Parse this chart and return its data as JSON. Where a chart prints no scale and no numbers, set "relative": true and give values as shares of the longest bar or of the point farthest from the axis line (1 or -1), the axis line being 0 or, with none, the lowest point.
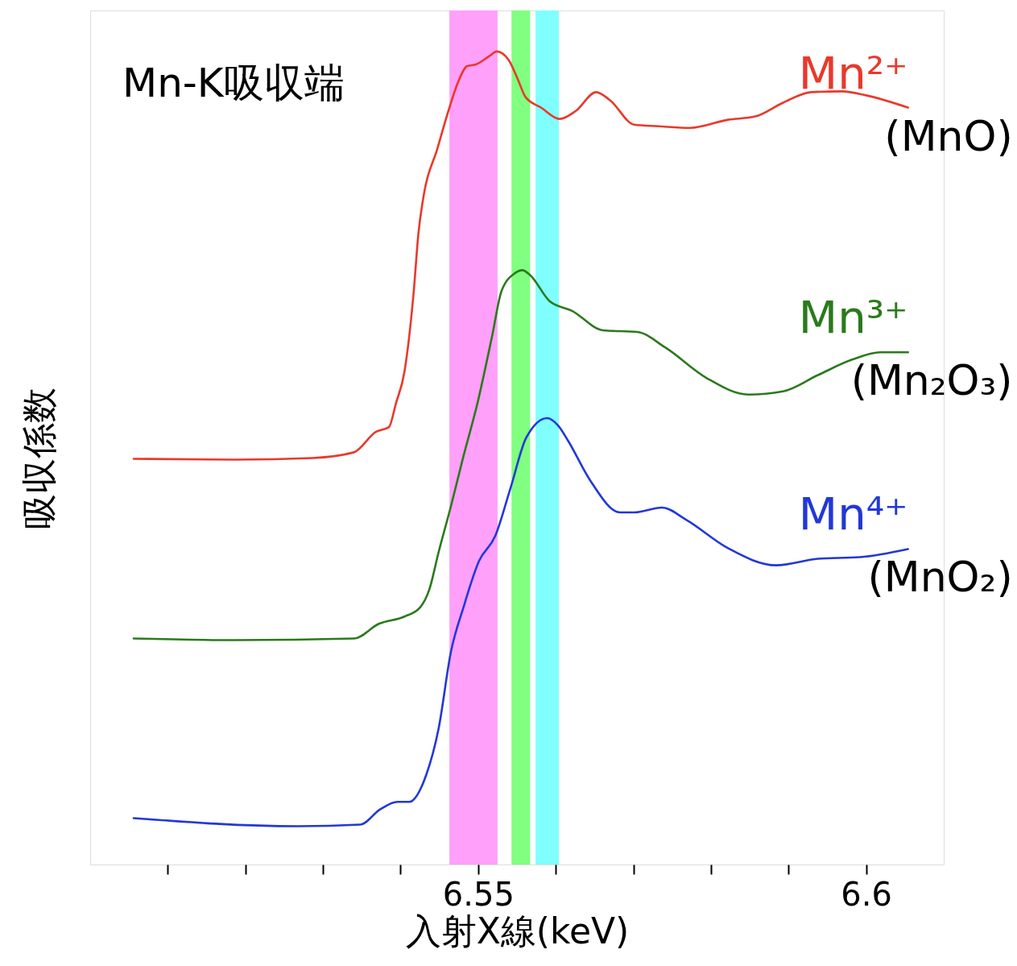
{
  "chart_data": {
    "type": "line",
    "title": "Mn-K吸収端",
    "xlabel": "入射X線(keV)",
    "ylabel": "吸収係数",
    "relative": true,
    "xlim": [
      6.5,
      6.61
    ],
    "xticks": [
      {
        "value": 6.51,
        "label": null
      },
      {
        "value": 6.52,
        "label": null
      },
      {
        "value": 6.53,
        "label": null
      },
      {
        "value": 6.54,
        "label": null
      },
      6.55,
      {
        "value": 6.56,
        "label": null
      },
      {
        "value": 6.57,
        "label": null
      },
      {
        "value": 6.58,
        "label": null
      },
      {
        "value": 6.59,
        "label": null
      },
      6.6
    ],
    "bands": [
      {
        "axis": "x",
        "from": 6.5463,
        "to": 6.5525,
        "color": "#ffa0fa"
      },
      {
        "axis": "x",
        "from": 6.5543,
        "to": 6.5567,
        "color": "#80ff80"
      },
      {
        "axis": "x",
        "from": 6.5574,
        "to": 6.5604,
        "color": "#80ffff"
      }
    ],
    "annotations": [
      "(MnO)",
      "(Mn₂O₃)",
      "(MnO₂)"
    ],
    "series": [
      {
        "name": "Mn²⁺",
        "color": "#e8392c",
        "x": [
          6.5056,
          6.5187,
          6.5287,
          6.534,
          6.5368,
          6.5385,
          6.5394,
          6.5405,
          6.5417,
          6.5423,
          6.543,
          6.5447,
          6.5463,
          6.5474,
          6.5486,
          6.5497,
          6.5514,
          6.5524,
          6.5539,
          6.5551,
          6.5561,
          6.5581,
          6.5605,
          6.5626,
          6.5652,
          6.567,
          6.5701,
          6.5733,
          6.5773,
          6.5822,
          6.5857,
          6.5893,
          6.5929,
          6.5969,
          6.6,
          6.6054
        ],
        "values": [
          0.499,
          0.498,
          0.5,
          0.507,
          0.532,
          0.538,
          0.567,
          0.606,
          0.705,
          0.776,
          0.824,
          0.879,
          0.931,
          0.962,
          0.982,
          0.984,
          0.994,
          1.0,
          0.99,
          0.966,
          0.944,
          0.931,
          0.917,
          0.927,
          0.95,
          0.94,
          0.91,
          0.908,
          0.906,
          0.916,
          0.92,
          0.937,
          0.95,
          0.951,
          0.946,
          0.931
        ]
      },
      {
        "name": "Mn³⁺",
        "color": "#2b7a1c",
        "x": [
          6.5056,
          6.5187,
          6.534,
          6.5372,
          6.5405,
          6.5425,
          6.5437,
          6.5449,
          6.5465,
          6.5481,
          6.5499,
          6.5518,
          6.553,
          6.5547,
          6.5557,
          6.5567,
          6.5592,
          6.5621,
          6.5661,
          6.5705,
          6.5741,
          6.5795,
          6.5848,
          6.5893,
          6.5938,
          6.5982,
          6.6018,
          6.6054
        ],
        "values": [
          0.278,
          0.276,
          0.278,
          0.296,
          0.305,
          0.316,
          0.338,
          0.384,
          0.441,
          0.502,
          0.567,
          0.65,
          0.705,
          0.727,
          0.731,
          0.725,
          0.693,
          0.681,
          0.657,
          0.655,
          0.636,
          0.598,
          0.578,
          0.582,
          0.602,
          0.621,
          0.63,
          0.63
        ]
      },
      {
        "name": "Mn⁴⁺",
        "color": "#2238d8",
        "x": [
          6.5056,
          6.5267,
          6.5348,
          6.5374,
          6.5396,
          6.5411,
          6.5433,
          6.5449,
          6.5465,
          6.5481,
          6.5501,
          6.5522,
          6.5542,
          6.5562,
          6.5589,
          6.5603,
          6.5616,
          6.5644,
          6.5683,
          6.5701,
          6.5737,
          6.5768,
          6.5822,
          6.5884,
          6.5938,
          6.5992,
          6.6054
        ],
        "values": [
          0.057,
          0.047,
          0.049,
          0.068,
          0.077,
          0.077,
          0.11,
          0.167,
          0.262,
          0.316,
          0.373,
          0.404,
          0.464,
          0.525,
          0.549,
          0.54,
          0.521,
          0.473,
          0.433,
          0.433,
          0.439,
          0.424,
          0.389,
          0.368,
          0.376,
          0.378,
          0.388
        ]
      }
    ]
  }
}
